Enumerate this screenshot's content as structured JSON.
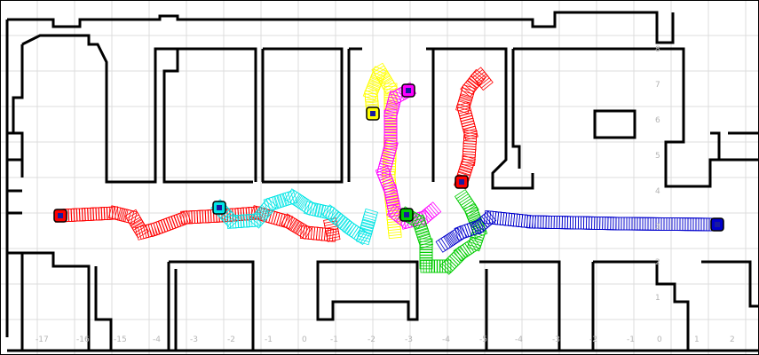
{
  "map": {
    "x_ticks": [
      "-17",
      "-16",
      "-15",
      "-4",
      "-3",
      "-2",
      "-1",
      "0",
      "-1",
      "-2",
      "-3",
      "-4",
      "-5",
      "-4",
      "-3",
      "-2",
      "-1",
      "0",
      "1",
      "2"
    ],
    "y_ticks": [
      "8",
      "7",
      "6",
      "5",
      "4",
      "3",
      "2",
      "1"
    ],
    "grid_color": "#dcdcdc",
    "wall_color": "#000000"
  },
  "robots": [
    {
      "name": "red-robot",
      "color": "#ff0000",
      "marker": "#1a1a9e"
    },
    {
      "name": "red-robot-2",
      "color": "#ff0000",
      "marker": "#1a1a9e"
    },
    {
      "name": "cyan-robot",
      "color": "#00e5e5",
      "marker": "#1a1a9e"
    },
    {
      "name": "yellow-robot",
      "color": "#ffff00",
      "marker": "#1a1a9e"
    },
    {
      "name": "magenta-robot",
      "color": "#ff00ff",
      "marker": "#1a1a9e"
    },
    {
      "name": "green-robot",
      "color": "#00cc00",
      "marker": "#1a1a9e"
    },
    {
      "name": "blue-robot",
      "color": "#0000cc",
      "marker": "#1a1a9e"
    }
  ]
}
